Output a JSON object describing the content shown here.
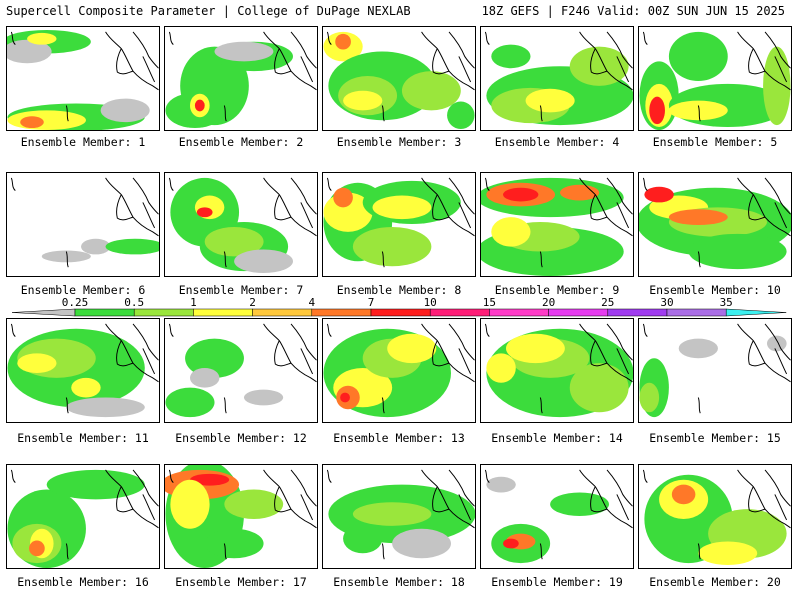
{
  "header": {
    "left": "Supercell Composite Parameter | College of DuPage NEXLAB",
    "right": "18Z GEFS | F246 Valid: 00Z SUN JUN 15 2025"
  },
  "members": [
    "Ensemble Member: 1",
    "Ensemble Member: 2",
    "Ensemble Member: 3",
    "Ensemble Member: 4",
    "Ensemble Member: 5",
    "Ensemble Member: 6",
    "Ensemble Member: 7",
    "Ensemble Member: 8",
    "Ensemble Member: 9",
    "Ensemble Member: 10",
    "Ensemble Member: 11",
    "Ensemble Member: 12",
    "Ensemble Member: 13",
    "Ensemble Member: 14",
    "Ensemble Member: 15",
    "Ensemble Member: 16",
    "Ensemble Member: 17",
    "Ensemble Member: 18",
    "Ensemble Member: 19",
    "Ensemble Member: 20"
  ],
  "legend": {
    "labels": [
      "0.25",
      "0.5",
      "1",
      "2",
      "4",
      "7",
      "10",
      "15",
      "20",
      "25",
      "30",
      "35"
    ],
    "colors": [
      "#c4c4c4",
      "#3cdc3c",
      "#9ae63c",
      "#ffff3c",
      "#ffc83c",
      "#ff7828",
      "#ff1e1e",
      "#ff1e78",
      "#ff3cc8",
      "#e63cf0",
      "#a03cf0",
      "#aa6ee6",
      "#3cf0f0"
    ]
  }
}
